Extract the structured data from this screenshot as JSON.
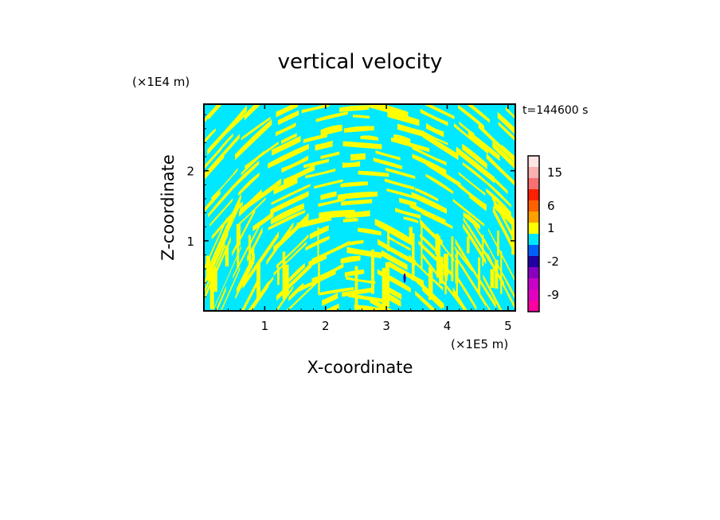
{
  "chart_data": {
    "type": "heatmap",
    "title": "vertical velocity",
    "xlabel": "X-coordinate",
    "ylabel": "Z-coordinate",
    "x_unit": "(×1E5 m)",
    "y_unit": "(×1E4 m)",
    "time_label": "t=144600 s",
    "xlim": [
      0,
      5.12
    ],
    "ylim": [
      0,
      2.95
    ],
    "x_ticks": [
      1,
      2,
      3,
      4,
      5
    ],
    "y_ticks": [
      1,
      2
    ],
    "x_tick_labels": [
      "1",
      "2",
      "3",
      "4",
      "5"
    ],
    "y_tick_labels": [
      "1",
      "2"
    ],
    "colorbar": {
      "levels": [
        {
          "color": "#ff00a0",
          "label": ""
        },
        {
          "color": "#e000c0",
          "label": "-9"
        },
        {
          "color": "#c800c8",
          "label": ""
        },
        {
          "color": "#8800c0",
          "label": ""
        },
        {
          "color": "#2000a0",
          "label": "-2"
        },
        {
          "color": "#0060ff",
          "label": ""
        },
        {
          "color": "#00e8ff",
          "label": ""
        },
        {
          "color": "#ffff00",
          "label": "1"
        },
        {
          "color": "#ffa000",
          "label": ""
        },
        {
          "color": "#ff6000",
          "label": "6"
        },
        {
          "color": "#ff2000",
          "label": ""
        },
        {
          "color": "#f87070",
          "label": ""
        },
        {
          "color": "#f8b0b0",
          "label": "15"
        },
        {
          "color": "#ffe4e4",
          "label": ""
        }
      ]
    },
    "field_colors": {
      "negative": "#00e8ff",
      "positive": "#ffff00",
      "strong_negative": "#2000a0"
    }
  }
}
